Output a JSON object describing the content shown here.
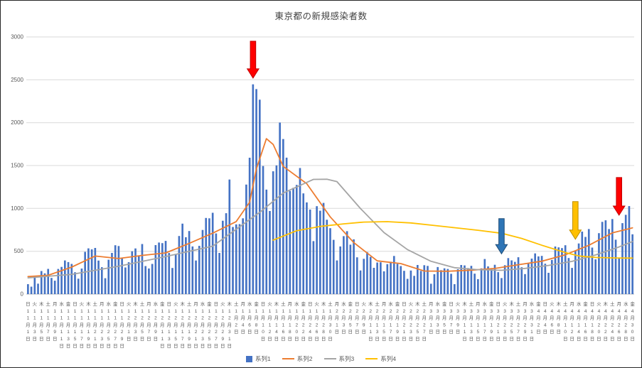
{
  "chart_data": {
    "type": "bar",
    "title": "東京都の新規感染者数",
    "xlabel": "",
    "ylabel": "",
    "ylim": [
      0,
      3000
    ],
    "y_ticks": [
      0,
      500,
      1000,
      1500,
      2000,
      2500,
      3000
    ],
    "grid": true,
    "legend_position": "bottom",
    "x_start": "11月1日(日)",
    "x_end": "4月30日(金)",
    "x_tick_interval_days": 2,
    "series": [
      {
        "name": "系列1",
        "type": "bar",
        "color": "#4472C4",
        "values": [
          116,
          87,
          209,
          122,
          269,
          242,
          294,
          189,
          157,
          293,
          317,
          393,
          374,
          352,
          255,
          180,
          298,
          493,
          534,
          522,
          539,
          391,
          314,
          186,
          401,
          481,
          570,
          561,
          418,
          311,
          372,
          500,
          533,
          449,
          584,
          327,
          299,
          352,
          572,
          602,
          595,
          621,
          480,
          305,
          460,
          678,
          822,
          664,
          736,
          556,
          392,
          563,
          748,
          888,
          884,
          949,
          708,
          481,
          856,
          944,
          1337,
          783,
          814,
          816,
          884,
          1278,
          1591,
          2447,
          2392,
          2268,
          1494,
          1219,
          970,
          1433,
          1502,
          2001,
          1809,
          1592,
          1204,
          1240,
          1274,
          1471,
          1175,
          1070,
          986,
          618,
          1026,
          973,
          1064,
          868,
          769,
          633,
          393,
          556,
          676,
          734,
          577,
          639,
          429,
          276,
          412,
          491,
          434,
          307,
          369,
          371,
          266,
          350,
          378,
          445,
          353,
          327,
          272,
          178,
          275,
          213,
          340,
          270,
          337,
          329,
          121,
          232,
          316,
          279,
          301,
          293,
          237,
          116,
          290,
          340,
          335,
          304,
          330,
          239,
          175,
          300,
          409,
          323,
          303,
          342,
          256,
          187,
          337,
          420,
          394,
          376,
          430,
          313,
          234,
          364,
          414,
          475,
          440,
          446,
          355,
          249,
          399,
          555,
          545,
          537,
          570,
          421,
          306,
          510,
          591,
          729,
          667,
          759,
          543,
          405,
          711,
          843,
          861,
          759,
          876,
          635,
          425,
          828,
          925,
          1027,
          698
        ]
      },
      {
        "name": "系列2",
        "type": "line",
        "color": "#ED7D31",
        "keypoints": [
          [
            0,
            205
          ],
          [
            6,
            220
          ],
          [
            13,
            315
          ],
          [
            20,
            444
          ],
          [
            27,
            415
          ],
          [
            34,
            452
          ],
          [
            41,
            481
          ],
          [
            48,
            592
          ],
          [
            55,
            711
          ],
          [
            62,
            846
          ],
          [
            66,
            1072
          ],
          [
            68,
            1460
          ],
          [
            71,
            1813
          ],
          [
            73,
            1746
          ],
          [
            76,
            1490
          ],
          [
            83,
            1289
          ],
          [
            90,
            901
          ],
          [
            97,
            601
          ],
          [
            104,
            388
          ],
          [
            111,
            356
          ],
          [
            118,
            269
          ],
          [
            125,
            267
          ],
          [
            132,
            279
          ],
          [
            139,
            299
          ],
          [
            146,
            343
          ],
          [
            153,
            384
          ],
          [
            160,
            459
          ],
          [
            167,
            569
          ],
          [
            174,
            714
          ],
          [
            180,
            773
          ]
        ]
      },
      {
        "name": "系列3",
        "type": "line",
        "color": "#A5A5A5",
        "keypoints": [
          [
            0,
            190
          ],
          [
            13,
            230
          ],
          [
            27,
            326
          ],
          [
            41,
            438
          ],
          [
            55,
            559
          ],
          [
            69,
            954
          ],
          [
            76,
            1179
          ],
          [
            85,
            1338
          ],
          [
            89,
            1340
          ],
          [
            92,
            1313
          ],
          [
            99,
            999
          ],
          [
            106,
            718
          ],
          [
            113,
            520
          ],
          [
            120,
            383
          ],
          [
            127,
            308
          ],
          [
            134,
            285
          ],
          [
            141,
            278
          ],
          [
            148,
            300
          ],
          [
            155,
            335
          ],
          [
            162,
            382
          ],
          [
            169,
            457
          ],
          [
            176,
            550
          ],
          [
            180,
            613
          ]
        ]
      },
      {
        "name": "系列4",
        "type": "line",
        "color": "#FFC000",
        "keypoints": [
          [
            73,
            630
          ],
          [
            80,
            740
          ],
          [
            87,
            790
          ],
          [
            94,
            820
          ],
          [
            100,
            840
          ],
          [
            107,
            845
          ],
          [
            114,
            830
          ],
          [
            120,
            805
          ],
          [
            127,
            775
          ],
          [
            134,
            745
          ],
          [
            141,
            710
          ],
          [
            147,
            650
          ],
          [
            153,
            570
          ],
          [
            160,
            485
          ],
          [
            164,
            445
          ],
          [
            169,
            428
          ],
          [
            175,
            422
          ],
          [
            180,
            420
          ]
        ]
      }
    ],
    "x_tick_labels": [
      "日,11,1",
      "火,11,3",
      "木,11,5",
      "土,11,7",
      "月,11,9",
      "水,11,11",
      "金,11,13",
      "日,11,15",
      "火,11,17",
      "木,11,19",
      "土,11,21",
      "月,11,23",
      "水,11,25",
      "金,11,27",
      "日,11,29",
      "火,12,1",
      "木,12,3",
      "土,12,5",
      "月,12,7",
      "水,12,9",
      "金,12,11",
      "日,12,13",
      "火,12,15",
      "木,12,17",
      "土,12,19",
      "月,12,21",
      "水,12,23",
      "金,12,25",
      "日,12,27",
      "火,12,29",
      "木,12,31",
      "土,1,2",
      "月,1,4",
      "水,1,6",
      "金,1,8",
      "日,1,10",
      "火,1,12",
      "木,1,14",
      "土,1,16",
      "月,1,18",
      "水,1,20",
      "金,1,22",
      "日,1,24",
      "火,1,26",
      "木,1,28",
      "土,1,30",
      "月,2,1",
      "水,2,3",
      "金,2,5",
      "日,2,7",
      "火,2,9",
      "木,2,11",
      "土,2,13",
      "月,2,15",
      "水,2,17",
      "金,2,19",
      "日,2,21",
      "火,2,23",
      "木,2,25",
      "土,2,27",
      "月,3,1",
      "水,3,3",
      "金,3,5",
      "日,3,7",
      "火,3,9",
      "木,3,11",
      "土,3,13",
      "月,3,15",
      "水,3,17",
      "金,3,19",
      "日,3,21",
      "火,3,23",
      "木,3,25",
      "土,3,27",
      "月,3,29",
      "水,3,31",
      "金,4,2",
      "日,4,4",
      "火,4,6",
      "木,4,8",
      "土,4,10",
      "月,4,12",
      "水,4,14",
      "金,4,16",
      "日,4,18",
      "火,4,20",
      "木,4,22",
      "土,4,24",
      "月,4,26",
      "水,4,28",
      "金,4,30"
    ],
    "annotations": [
      {
        "name": "red-down-arrow-jan-peak",
        "color": "#FF0000",
        "stroke": "#C00000",
        "day_index": 67,
        "tail_value": 2950,
        "tip_value": 2520
      },
      {
        "name": "blue-down-arrow-late-march",
        "color": "#2E75B6",
        "stroke": "#1F4E79",
        "day_index": 141,
        "tail_value": 880,
        "tip_value": 470
      },
      {
        "name": "gold-down-arrow-mid-april",
        "color": "#FFC000",
        "stroke": "#BF9000",
        "day_index": 163,
        "tail_value": 1080,
        "tip_value": 640
      },
      {
        "name": "red-down-arrow-late-april",
        "color": "#FF0000",
        "stroke": "#C00000",
        "day_index": 176,
        "tail_value": 1360,
        "tip_value": 920
      }
    ],
    "colors": {
      "gridline": "#D9D9D9",
      "axis_line": "#BFBFBF",
      "axis_text": "#595959",
      "title_text": "#404040"
    }
  }
}
